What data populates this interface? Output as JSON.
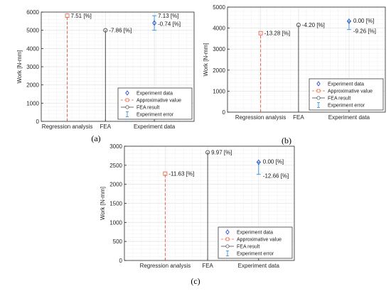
{
  "chart_data": [
    {
      "type": "stem",
      "panel_label": "(a)",
      "ylabel": "Work [N-mm]",
      "ylim": [
        0,
        6000
      ],
      "yticks": [
        0,
        1000,
        2000,
        3000,
        4000,
        5000,
        6000
      ],
      "categories": [
        "Regression analysis",
        "FEA",
        "Experiment data"
      ],
      "grid": true,
      "legend": {
        "position": "bottom-right",
        "entries": [
          "Experiment data",
          "Approximative value",
          "FEA result",
          "Experiment error"
        ]
      },
      "series": [
        {
          "name": "Approximative value",
          "category": "Regression analysis",
          "value": 5800,
          "label": "7.51 [%]"
        },
        {
          "name": "FEA result",
          "category": "FEA",
          "value": 5000,
          "label": "-7.86 [%]"
        },
        {
          "name": "Experiment data",
          "category": "Experiment data",
          "value": 5400,
          "label": "-0.74 [%]"
        },
        {
          "name": "Experiment error",
          "category": "Experiment data",
          "low": 5000,
          "high": 5800,
          "label": "7.13 [%]"
        }
      ]
    },
    {
      "type": "stem",
      "panel_label": "(b)",
      "ylabel": "Work [N-mm]",
      "ylim": [
        0,
        5000
      ],
      "yticks": [
        0,
        1000,
        2000,
        3000,
        4000,
        5000
      ],
      "categories": [
        "Regression analysis",
        "FEA",
        "Experiment data"
      ],
      "grid": true,
      "legend": {
        "position": "bottom-right",
        "entries": [
          "Experiment data",
          "Approximative value",
          "FEA result",
          "Experiment error"
        ]
      },
      "series": [
        {
          "name": "Approximative value",
          "category": "Regression analysis",
          "value": 3760,
          "label": "-13.28 [%]"
        },
        {
          "name": "FEA result",
          "category": "FEA",
          "value": 4150,
          "label": "-4.20 [%]"
        },
        {
          "name": "Experiment data",
          "category": "Experiment data",
          "value": 4330,
          "label": "0.00 [%]"
        },
        {
          "name": "Experiment error",
          "category": "Experiment data",
          "low": 3930,
          "high": 4330,
          "label": "-9.26 [%]"
        }
      ]
    },
    {
      "type": "stem",
      "panel_label": "(c)",
      "ylabel": "Work [N-mm]",
      "ylim": [
        0,
        3000
      ],
      "yticks": [
        0,
        500,
        1000,
        1500,
        2000,
        2500,
        3000
      ],
      "categories": [
        "Regression analysis",
        "FEA",
        "Experiment data"
      ],
      "grid": true,
      "legend": {
        "position": "bottom-right",
        "entries": [
          "Experiment data",
          "Approximative value",
          "FEA result",
          "Experiment error"
        ]
      },
      "series": [
        {
          "name": "Approximative value",
          "category": "Regression analysis",
          "value": 2280,
          "label": "-11.63 [%]"
        },
        {
          "name": "FEA result",
          "category": "FEA",
          "value": 2840,
          "label": "9.97 [%]"
        },
        {
          "name": "Experiment data",
          "category": "Experiment data",
          "value": 2580,
          "label": "0.00 [%]"
        },
        {
          "name": "Experiment error",
          "category": "Experiment data",
          "low": 2260,
          "high": 2580,
          "label": "-12.66 [%]"
        }
      ]
    }
  ],
  "colors": {
    "approximative": "#e8553e",
    "fea": "#3b3b3b",
    "experiment_marker": "#1f3ccc",
    "experiment_error": "#2e8bd8",
    "grid": "#e6e6e6",
    "axis": "#262626"
  }
}
